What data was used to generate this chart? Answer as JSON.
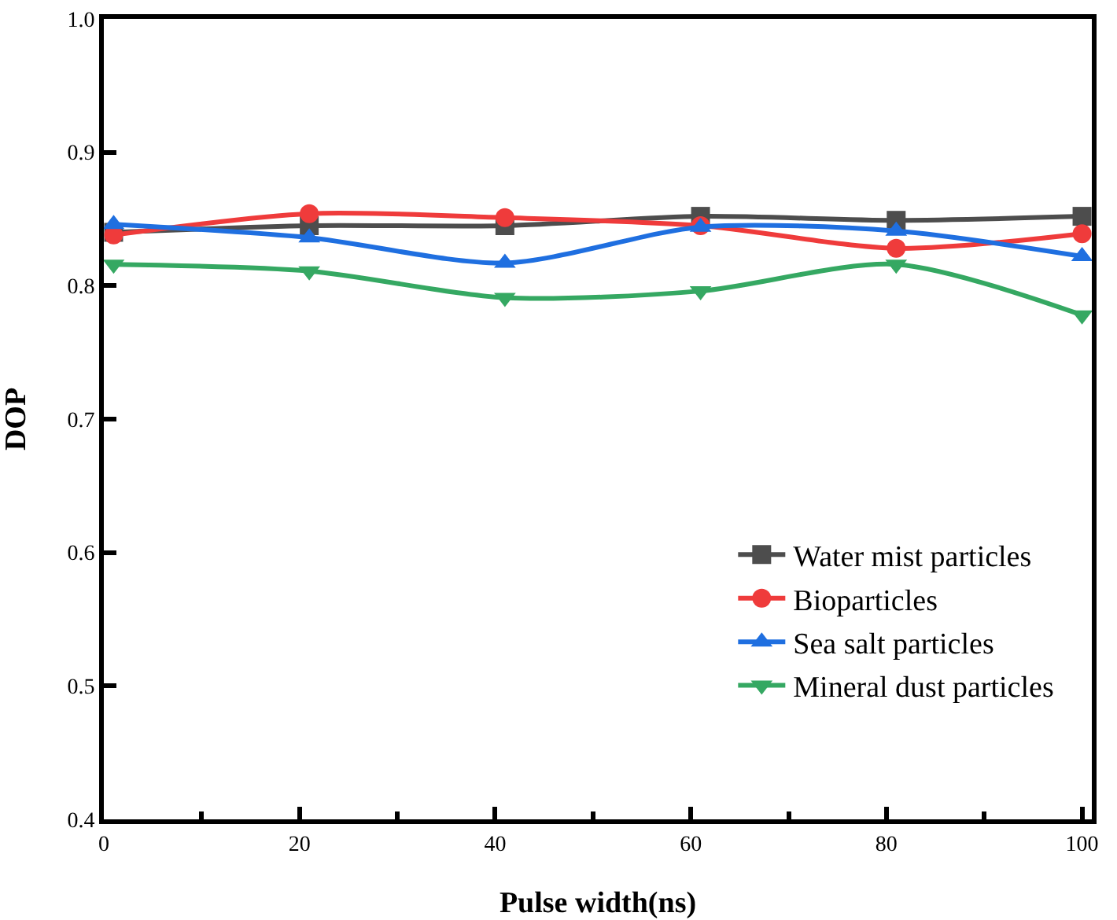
{
  "chart_data": {
    "type": "line",
    "xlabel": "Pulse width(ns)",
    "ylabel": "DOP",
    "x": [
      1,
      21,
      41,
      61,
      81,
      100
    ],
    "xlim": [
      0,
      101
    ],
    "xticks": [
      0,
      20,
      40,
      60,
      80,
      100
    ],
    "ylim": [
      0.4,
      1.0
    ],
    "yticks": [
      0.4,
      0.5,
      0.6,
      0.7,
      0.8,
      0.9,
      {
        "value": 1.0,
        "label": "1.0"
      }
    ],
    "grid": false,
    "legend": "bottom right",
    "line_style": "solid",
    "series": [
      {
        "name": "Water mist particles",
        "color": "#4d4d4d",
        "marker": "square",
        "values": [
          0.84,
          0.845,
          0.845,
          0.852,
          0.849,
          0.852
        ]
      },
      {
        "name": "Bioparticles",
        "color": "#ef3b3b",
        "marker": "circle",
        "values": [
          0.838,
          0.854,
          0.851,
          0.845,
          0.828,
          0.839
        ]
      },
      {
        "name": "Sea salt particles",
        "color": "#1f6fe0",
        "marker": "triangle",
        "values": [
          0.846,
          0.836,
          0.817,
          0.844,
          0.841,
          0.822
        ]
      },
      {
        "name": "Mineral dust particles",
        "color": "#35a862",
        "marker": "triangle-down",
        "values": [
          0.816,
          0.811,
          0.791,
          0.796,
          0.816,
          0.778
        ]
      }
    ]
  }
}
